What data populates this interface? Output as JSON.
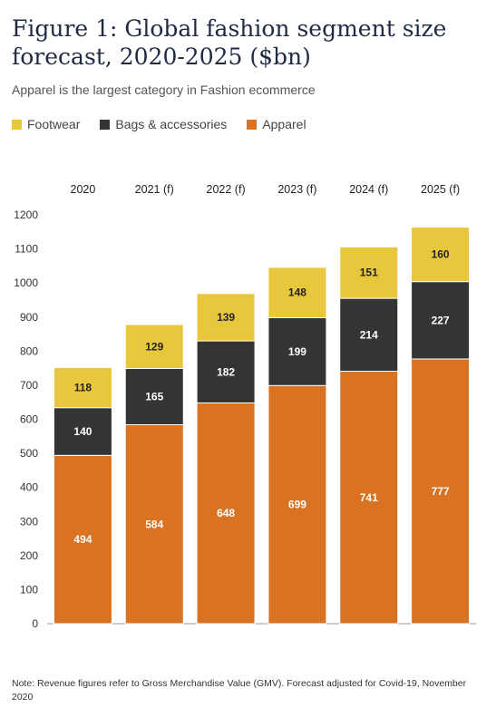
{
  "title": "Figure 1: Global fashion segment size forecast, 2020-2025 ($bn)",
  "subtitle": "Apparel is the largest category in Fashion ecommerce",
  "note": "Note: Revenue figures refer to Gross Merchandise Value (GMV). Forecast adjusted for Covid-19, November 2020",
  "colors": {
    "Footwear": "#e8c73d",
    "Bags & accessories": "#323436",
    "Apparel": "#d97322",
    "axis": "#999999"
  },
  "chart_data": {
    "type": "bar",
    "stacked": true,
    "categories": [
      "2020",
      "2021 (f)",
      "2022 (f)",
      "2023 (f)",
      "2024 (f)",
      "2025 (f)"
    ],
    "series": [
      {
        "name": "Apparel",
        "values": [
          494,
          584,
          648,
          699,
          741,
          777
        ]
      },
      {
        "name": "Bags & accessories",
        "values": [
          140,
          165,
          182,
          199,
          214,
          227
        ]
      },
      {
        "name": "Footwear",
        "values": [
          118,
          129,
          139,
          148,
          151,
          160
        ]
      }
    ],
    "legend_order": [
      "Footwear",
      "Bags & accessories",
      "Apparel"
    ],
    "ylim": [
      0,
      1200
    ],
    "yticks": [
      0,
      100,
      200,
      300,
      400,
      500,
      600,
      700,
      800,
      900,
      1000,
      1100,
      1200
    ],
    "grid": false,
    "legend_position": "top-left",
    "category_labels_position": "top",
    "xlabel": "",
    "ylabel": ""
  }
}
